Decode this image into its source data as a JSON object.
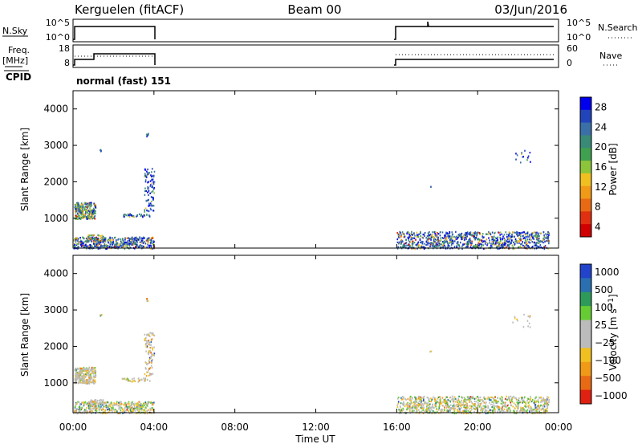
{
  "header": {
    "station": "Kerguelen (fitACF)",
    "beam": "Beam 00",
    "date": "03/Jun/2016"
  },
  "panels": {
    "nsky": {
      "left_label": "N.Sky",
      "right_label": "N.Search",
      "left_ticks": [
        "10^5",
        "10^0"
      ],
      "right_ticks": [
        "10^5",
        "10^0"
      ]
    },
    "freq": {
      "left_label_line1": "Freq.",
      "left_label_line2": "[MHz]",
      "right_label": "Nave",
      "left_ticks": [
        "18",
        "8"
      ],
      "right_ticks": [
        "60",
        "0"
      ]
    },
    "cpid": {
      "label": "CPID",
      "value": "normal (fast) 151"
    }
  },
  "chart_data": [
    {
      "type": "heatmap",
      "title": "",
      "xlabel": "",
      "ylabel": "Slant Range [km]",
      "colorbar_label": "Power [dB]",
      "xlim": [
        "00:00",
        "24:00"
      ],
      "ylim": [
        180,
        4500
      ],
      "yticks": [
        "1000",
        "2000",
        "3000",
        "4000"
      ],
      "colorbar_ticks": [
        "4",
        "8",
        "12",
        "16",
        "20",
        "24",
        "28"
      ],
      "colorbar_colors": [
        "#0000ee",
        "#2244bb",
        "#3a6fa8",
        "#3a8a78",
        "#3fa050",
        "#8cc43a",
        "#f0c020",
        "#f09a18",
        "#e86a14",
        "#e03010",
        "#d00000"
      ],
      "grid": false,
      "data_gaps_ut": [
        [
          "04:00",
          "16:00"
        ]
      ]
    },
    {
      "type": "heatmap",
      "title": "",
      "xlabel": "Time UT",
      "ylabel": "Slant Range [km]",
      "colorbar_label": "Velocity [m s^-1]",
      "xlim": [
        "00:00",
        "24:00"
      ],
      "ylim": [
        180,
        4500
      ],
      "xticks": [
        "00:00",
        "04:00",
        "08:00",
        "12:00",
        "16:00",
        "20:00",
        "00:00"
      ],
      "yticks": [
        "1000",
        "2000",
        "3000",
        "4000"
      ],
      "colorbar_ticks": [
        "1000",
        "500",
        "100",
        "25",
        "-25",
        "-100",
        "-500",
        "-1000"
      ],
      "colorbar_colors": [
        "#2244cc",
        "#2a6fb0",
        "#2e9a5a",
        "#66cc33",
        "#bbbbbb",
        "#bbbbbb",
        "#f0c020",
        "#f09a18",
        "#e86a14",
        "#e02010"
      ],
      "grid": false,
      "data_gaps_ut": [
        [
          "04:00",
          "16:00"
        ]
      ]
    }
  ]
}
